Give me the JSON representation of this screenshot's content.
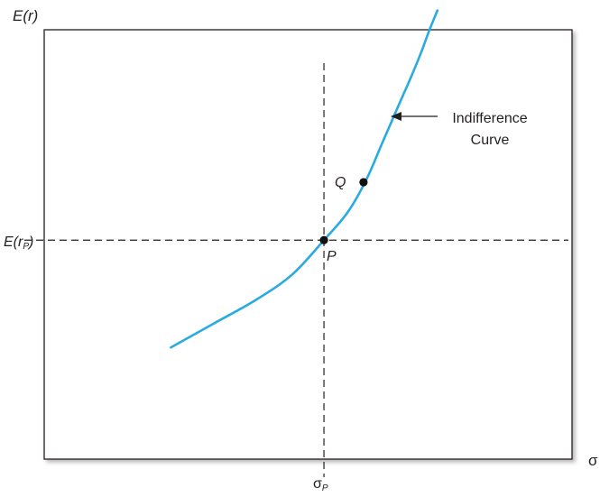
{
  "chart_data": {
    "type": "line",
    "title": "",
    "xlabel": "σ",
    "ylabel": "E(r)",
    "xlim": [
      0,
      10
    ],
    "ylim": [
      0,
      10
    ],
    "grid": false,
    "reference_lines": {
      "vertical": {
        "x": 5.3,
        "label_main": "σ",
        "label_sub": "P"
      },
      "horizontal": {
        "y": 5.1,
        "label_main": "E(r",
        "label_sub": "P",
        "label_close": ")"
      }
    },
    "series": [
      {
        "color": "#29abe2",
        "x": [
          2.4,
          3.2,
          4.0,
          4.7,
          5.3,
          5.75,
          6.1,
          6.4,
          6.7,
          6.95,
          7.15,
          7.3,
          7.45
        ],
        "y": [
          2.6,
          3.15,
          3.7,
          4.3,
          5.1,
          5.75,
          6.5,
          7.35,
          8.2,
          8.9,
          9.5,
          10.0,
          10.45
        ]
      }
    ],
    "points": [
      {
        "label": "P",
        "x": 5.3,
        "y": 5.1
      },
      {
        "label": "Q",
        "x": 6.05,
        "y": 6.45
      }
    ],
    "annotations": [
      {
        "text_lines": [
          "Indifference",
          "Curve"
        ],
        "target": {
          "x": 7.2,
          "y": 8.3
        }
      }
    ]
  }
}
